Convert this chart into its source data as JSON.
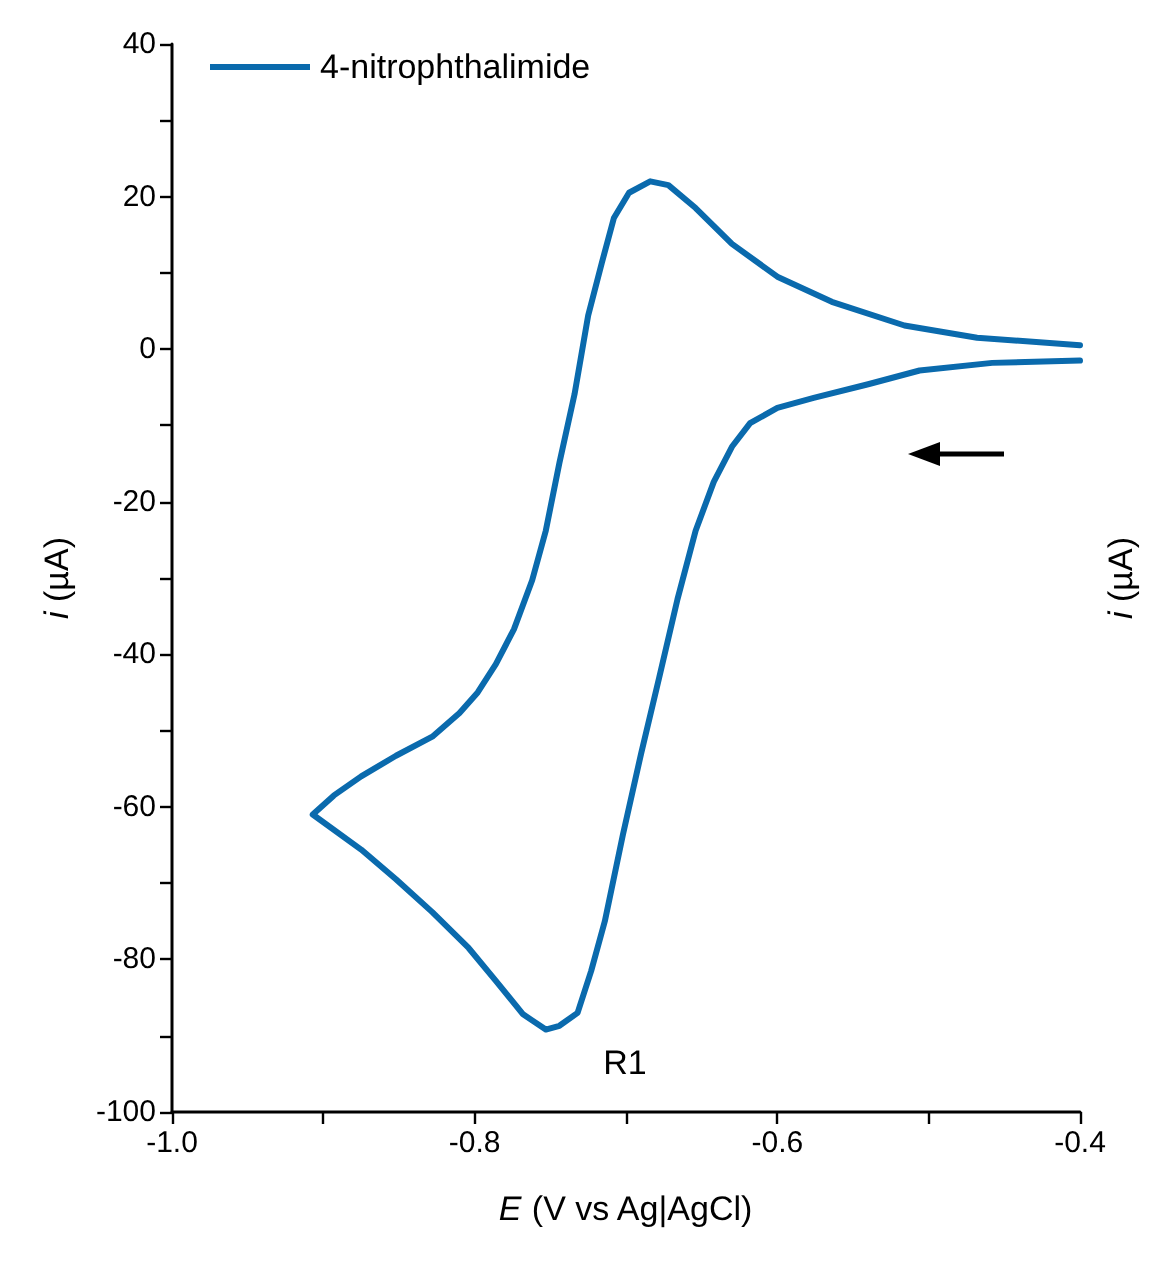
{
  "chart_data": {
    "type": "line",
    "xlabel": "E (V vs Ag|AgCl)",
    "ylabel": "i (µA)",
    "y2label": "i (µA)",
    "xlim": [
      -1.0,
      -0.4
    ],
    "xticks": [
      {
        "value": -1.0,
        "label": "-1.0"
      },
      {
        "value": -0.9,
        "label": null
      },
      -0.8,
      {
        "value": -0.7,
        "label": null
      },
      -0.6,
      {
        "value": -0.5,
        "label": null
      },
      -0.4
    ],
    "ylim": [
      -100,
      40
    ],
    "yticks": [
      -100,
      {
        "value": -90,
        "label": null
      },
      -80,
      {
        "value": -70,
        "label": null
      },
      -60,
      {
        "value": -50,
        "label": null
      },
      -40,
      {
        "value": -30,
        "label": null
      },
      -20,
      {
        "value": -10,
        "label": null
      },
      0,
      {
        "value": 10,
        "label": null
      },
      20,
      {
        "value": 30,
        "label": null
      },
      40
    ],
    "grid": false,
    "legend": "top left",
    "marker": "none",
    "line_style": "solid",
    "annotations": [
      "R1"
    ],
    "series": [
      {
        "name": "4-nitrophthalimide",
        "color": "#0a6aad",
        "x": [
          -0.4,
          -0.458,
          -0.506,
          -0.54,
          -0.576,
          -0.6,
          -0.618,
          -0.63,
          -0.642,
          -0.654,
          -0.666,
          -0.678,
          -0.69,
          -0.702,
          -0.714,
          -0.723,
          -0.732,
          -0.744,
          -0.753,
          -0.768,
          -0.786,
          -0.804,
          -0.828,
          -0.852,
          -0.875,
          -0.907,
          -0.893,
          -0.875,
          -0.852,
          -0.828,
          -0.81,
          -0.798,
          -0.786,
          -0.774,
          -0.762,
          -0.753,
          -0.744,
          -0.734,
          -0.725,
          -0.716,
          -0.708,
          -0.698,
          -0.684,
          -0.672,
          -0.654,
          -0.63,
          -0.6,
          -0.564,
          -0.516,
          -0.468,
          -0.4
        ],
        "values": [
          -1.5,
          -1.8,
          -2.8,
          -4.6,
          -6.4,
          -7.7,
          -9.7,
          -12.8,
          -17.4,
          -23.8,
          -32.8,
          -43,
          -53,
          -63.6,
          -75,
          -81.5,
          -87,
          -88.7,
          -89.2,
          -87.2,
          -82.8,
          -78.5,
          -73.8,
          -69.5,
          -65.6,
          -61,
          -58.5,
          -56,
          -53.3,
          -50.8,
          -47.7,
          -45,
          -41.3,
          -36.7,
          -30.3,
          -23.8,
          -14.9,
          -5.9,
          4.4,
          11.3,
          17.2,
          20.5,
          22,
          21.5,
          18.5,
          13.8,
          9.5,
          6.2,
          3.1,
          1.5,
          0.5
        ]
      }
    ]
  }
}
